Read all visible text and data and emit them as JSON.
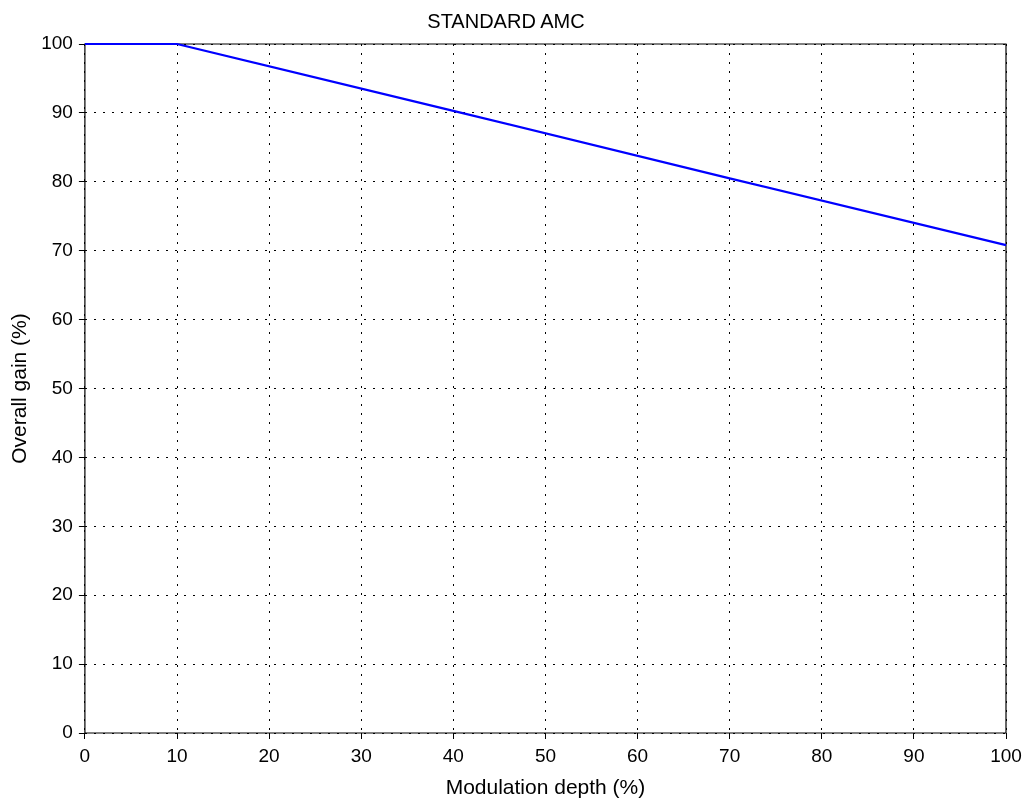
{
  "chart_data": {
    "type": "line",
    "title": "STANDARD AMC",
    "xlabel": "Modulation depth (%)",
    "ylabel": "Overall gain (%)",
    "x": [
      0,
      10,
      40,
      70,
      100
    ],
    "series": [
      {
        "color": "#0000ff",
        "values": [
          100,
          100,
          90.3,
          80.5,
          70.8
        ]
      }
    ],
    "xlim": [
      0,
      100
    ],
    "xticks": [
      0,
      10,
      20,
      30,
      40,
      50,
      60,
      70,
      80,
      90,
      100
    ],
    "ylim": [
      0,
      100
    ],
    "yticks": [
      0,
      10,
      20,
      30,
      40,
      50,
      60,
      70,
      80,
      90,
      100
    ],
    "grid": true,
    "legend": false,
    "marker": "none",
    "line_style": "solid"
  }
}
